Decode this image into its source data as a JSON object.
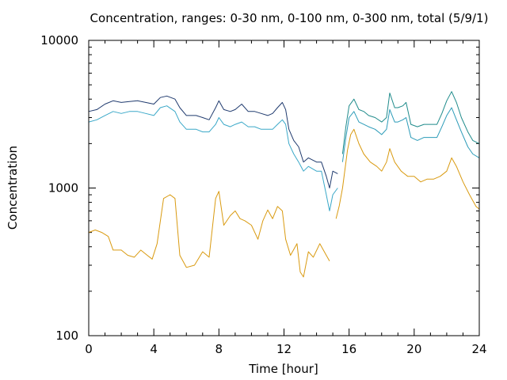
{
  "chart_data": {
    "type": "line",
    "title": "Concentration, ranges: 0-30 nm, 0-100 nm, 0-300 nm, total (5/9/1)",
    "xlabel": "Time [hour]",
    "ylabel": "Concentration",
    "xlim": [
      0,
      24
    ],
    "ylim": [
      100,
      10000
    ],
    "yscale": "log",
    "xticks": [
      0,
      4,
      8,
      12,
      16,
      20,
      24
    ],
    "xtick_labels": [
      "0",
      "4",
      "8",
      "12",
      "16",
      "20",
      "24"
    ],
    "yticks": [
      100,
      1000,
      10000
    ],
    "ytick_labels": [
      "100",
      "1000",
      "10000"
    ],
    "grid": false,
    "legend": false,
    "series": [
      {
        "color": "#1f3a6e",
        "values": [
          [
            0.0,
            3300
          ],
          [
            0.5,
            3400
          ],
          [
            1.0,
            3700
          ],
          [
            1.5,
            3900
          ],
          [
            2.0,
            3800
          ],
          [
            2.5,
            3850
          ],
          [
            3.0,
            3900
          ],
          [
            3.5,
            3800
          ],
          [
            4.0,
            3700
          ],
          [
            4.4,
            4100
          ],
          [
            4.8,
            4200
          ],
          [
            5.3,
            4000
          ],
          [
            5.6,
            3500
          ],
          [
            6.0,
            3100
          ],
          [
            6.6,
            3100
          ],
          [
            7.0,
            3000
          ],
          [
            7.4,
            2900
          ],
          [
            7.8,
            3500
          ],
          [
            8.0,
            3900
          ],
          [
            8.3,
            3400
          ],
          [
            8.7,
            3300
          ],
          [
            9.0,
            3400
          ],
          [
            9.4,
            3700
          ],
          [
            9.8,
            3300
          ],
          [
            10.2,
            3300
          ],
          [
            10.6,
            3200
          ],
          [
            11.0,
            3100
          ],
          [
            11.3,
            3200
          ],
          [
            11.6,
            3500
          ],
          [
            11.9,
            3800
          ],
          [
            12.1,
            3400
          ],
          [
            12.3,
            2500
          ],
          [
            12.6,
            2100
          ],
          [
            12.9,
            1900
          ],
          [
            13.2,
            1500
          ],
          [
            13.5,
            1600
          ],
          [
            14.0,
            1500
          ],
          [
            14.3,
            1500
          ],
          [
            14.6,
            1200
          ],
          [
            14.8,
            1000
          ],
          [
            15.0,
            1300
          ],
          [
            15.3,
            1250
          ]
        ]
      },
      {
        "color": "#1f8b8b",
        "values": [
          [
            15.6,
            1700
          ],
          [
            15.8,
            2600
          ],
          [
            16.0,
            3600
          ],
          [
            16.3,
            4000
          ],
          [
            16.6,
            3400
          ],
          [
            16.9,
            3300
          ],
          [
            17.2,
            3100
          ],
          [
            17.6,
            3000
          ],
          [
            18.0,
            2800
          ],
          [
            18.3,
            3000
          ],
          [
            18.5,
            4400
          ],
          [
            18.8,
            3500
          ],
          [
            19.0,
            3500
          ],
          [
            19.3,
            3600
          ],
          [
            19.5,
            3800
          ],
          [
            19.8,
            2700
          ],
          [
            20.2,
            2600
          ],
          [
            20.6,
            2700
          ],
          [
            21.0,
            2700
          ],
          [
            21.4,
            2700
          ],
          [
            21.7,
            3200
          ],
          [
            22.0,
            3900
          ],
          [
            22.3,
            4500
          ],
          [
            22.6,
            3800
          ],
          [
            22.9,
            3000
          ],
          [
            23.3,
            2400
          ],
          [
            23.6,
            2100
          ],
          [
            24.0,
            2000
          ]
        ]
      },
      {
        "color": "#3aa8c8",
        "values": [
          [
            0.0,
            2800
          ],
          [
            0.5,
            2900
          ],
          [
            1.0,
            3100
          ],
          [
            1.5,
            3300
          ],
          [
            2.0,
            3200
          ],
          [
            2.5,
            3300
          ],
          [
            3.0,
            3300
          ],
          [
            3.5,
            3200
          ],
          [
            4.0,
            3100
          ],
          [
            4.4,
            3500
          ],
          [
            4.8,
            3600
          ],
          [
            5.3,
            3300
          ],
          [
            5.6,
            2800
          ],
          [
            6.0,
            2500
          ],
          [
            6.6,
            2500
          ],
          [
            7.0,
            2400
          ],
          [
            7.4,
            2400
          ],
          [
            7.8,
            2700
          ],
          [
            8.0,
            3000
          ],
          [
            8.3,
            2700
          ],
          [
            8.7,
            2600
          ],
          [
            9.0,
            2700
          ],
          [
            9.4,
            2800
          ],
          [
            9.8,
            2600
          ],
          [
            10.2,
            2600
          ],
          [
            10.6,
            2500
          ],
          [
            11.0,
            2500
          ],
          [
            11.3,
            2500
          ],
          [
            11.6,
            2700
          ],
          [
            11.9,
            2900
          ],
          [
            12.1,
            2700
          ],
          [
            12.3,
            2000
          ],
          [
            12.6,
            1700
          ],
          [
            12.9,
            1500
          ],
          [
            13.2,
            1300
          ],
          [
            13.5,
            1400
          ],
          [
            14.0,
            1300
          ],
          [
            14.3,
            1300
          ],
          [
            14.6,
            900
          ],
          [
            14.8,
            700
          ],
          [
            15.0,
            900
          ],
          [
            15.3,
            1000
          ]
        ]
      },
      {
        "color": "#2b9bb8",
        "values": [
          [
            15.6,
            1500
          ],
          [
            15.8,
            2200
          ],
          [
            16.0,
            3000
          ],
          [
            16.3,
            3300
          ],
          [
            16.6,
            2800
          ],
          [
            16.9,
            2700
          ],
          [
            17.2,
            2600
          ],
          [
            17.6,
            2500
          ],
          [
            18.0,
            2300
          ],
          [
            18.3,
            2500
          ],
          [
            18.5,
            3400
          ],
          [
            18.8,
            2800
          ],
          [
            19.0,
            2800
          ],
          [
            19.3,
            2900
          ],
          [
            19.5,
            3000
          ],
          [
            19.8,
            2200
          ],
          [
            20.2,
            2100
          ],
          [
            20.6,
            2200
          ],
          [
            21.0,
            2200
          ],
          [
            21.4,
            2200
          ],
          [
            21.7,
            2600
          ],
          [
            22.0,
            3100
          ],
          [
            22.3,
            3500
          ],
          [
            22.6,
            2900
          ],
          [
            22.9,
            2400
          ],
          [
            23.3,
            1900
          ],
          [
            23.6,
            1700
          ],
          [
            24.0,
            1600
          ]
        ]
      },
      {
        "color": "#d99a10",
        "values": [
          [
            0.0,
            500
          ],
          [
            0.4,
            520
          ],
          [
            0.8,
            500
          ],
          [
            1.2,
            470
          ],
          [
            1.5,
            380
          ],
          [
            2.0,
            380
          ],
          [
            2.4,
            350
          ],
          [
            2.8,
            340
          ],
          [
            3.2,
            380
          ],
          [
            3.6,
            350
          ],
          [
            3.9,
            330
          ],
          [
            4.2,
            420
          ],
          [
            4.6,
            850
          ],
          [
            5.0,
            900
          ],
          [
            5.3,
            850
          ],
          [
            5.6,
            350
          ],
          [
            6.0,
            290
          ],
          [
            6.5,
            300
          ],
          [
            7.0,
            370
          ],
          [
            7.4,
            340
          ],
          [
            7.8,
            850
          ],
          [
            8.0,
            950
          ],
          [
            8.3,
            560
          ],
          [
            8.7,
            650
          ],
          [
            9.0,
            700
          ],
          [
            9.3,
            620
          ],
          [
            9.6,
            600
          ],
          [
            10.0,
            560
          ],
          [
            10.4,
            450
          ],
          [
            10.7,
            600
          ],
          [
            11.0,
            710
          ],
          [
            11.3,
            620
          ],
          [
            11.6,
            750
          ],
          [
            11.9,
            700
          ],
          [
            12.1,
            450
          ],
          [
            12.4,
            350
          ],
          [
            12.8,
            420
          ],
          [
            13.0,
            270
          ],
          [
            13.2,
            250
          ],
          [
            13.5,
            370
          ],
          [
            13.8,
            340
          ],
          [
            14.2,
            420
          ],
          [
            14.6,
            350
          ],
          [
            14.8,
            320
          ]
        ]
      },
      {
        "color": "#d99a10",
        "values": [
          [
            15.2,
            620
          ],
          [
            15.4,
            760
          ],
          [
            15.6,
            1000
          ],
          [
            15.9,
            1800
          ],
          [
            16.1,
            2300
          ],
          [
            16.3,
            2500
          ],
          [
            16.6,
            2000
          ],
          [
            16.9,
            1700
          ],
          [
            17.3,
            1500
          ],
          [
            17.7,
            1400
          ],
          [
            18.0,
            1300
          ],
          [
            18.3,
            1500
          ],
          [
            18.5,
            1850
          ],
          [
            18.8,
            1500
          ],
          [
            19.2,
            1300
          ],
          [
            19.6,
            1200
          ],
          [
            20.0,
            1200
          ],
          [
            20.4,
            1100
          ],
          [
            20.8,
            1150
          ],
          [
            21.2,
            1150
          ],
          [
            21.6,
            1200
          ],
          [
            22.0,
            1300
          ],
          [
            22.3,
            1600
          ],
          [
            22.6,
            1400
          ],
          [
            23.0,
            1100
          ],
          [
            23.4,
            900
          ],
          [
            23.8,
            750
          ],
          [
            24.0,
            720
          ]
        ]
      }
    ]
  }
}
